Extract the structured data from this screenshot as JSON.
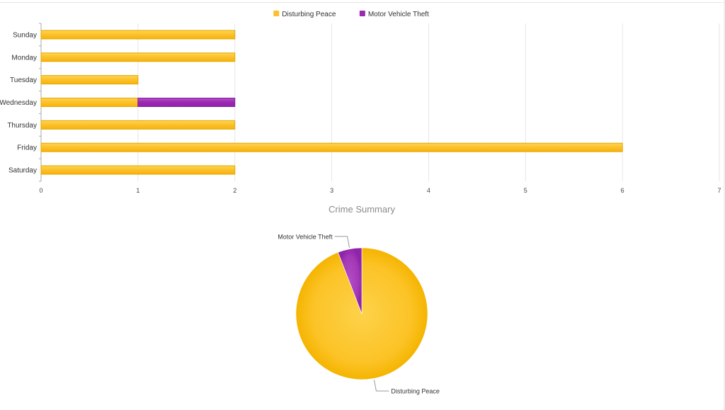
{
  "chart_data": [
    {
      "type": "bar",
      "orientation": "horizontal",
      "stacked": true,
      "categories": [
        "Sunday",
        "Monday",
        "Tuesday",
        "Wednesday",
        "Thursday",
        "Friday",
        "Saturday"
      ],
      "series": [
        {
          "name": "Disturbing Peace",
          "color": "#fbc02d",
          "values": [
            2,
            2,
            1,
            1,
            2,
            6,
            2
          ]
        },
        {
          "name": "Motor Vehicle Theft",
          "color": "#9c27b0",
          "values": [
            0,
            0,
            0,
            1,
            0,
            0,
            0
          ]
        }
      ],
      "xticks": [
        "0",
        "1",
        "2",
        "3",
        "4",
        "5",
        "6",
        "7"
      ],
      "xlim": [
        0,
        7
      ],
      "grid": true,
      "legend": "top-center"
    },
    {
      "type": "pie",
      "title": "Crime Summary",
      "slices": [
        {
          "label": "Disturbing Peace",
          "value": 16,
          "color": "#fbc02d"
        },
        {
          "label": "Motor Vehicle Theft",
          "value": 1,
          "color": "#9c27b0"
        }
      ],
      "legend": "none"
    }
  ]
}
